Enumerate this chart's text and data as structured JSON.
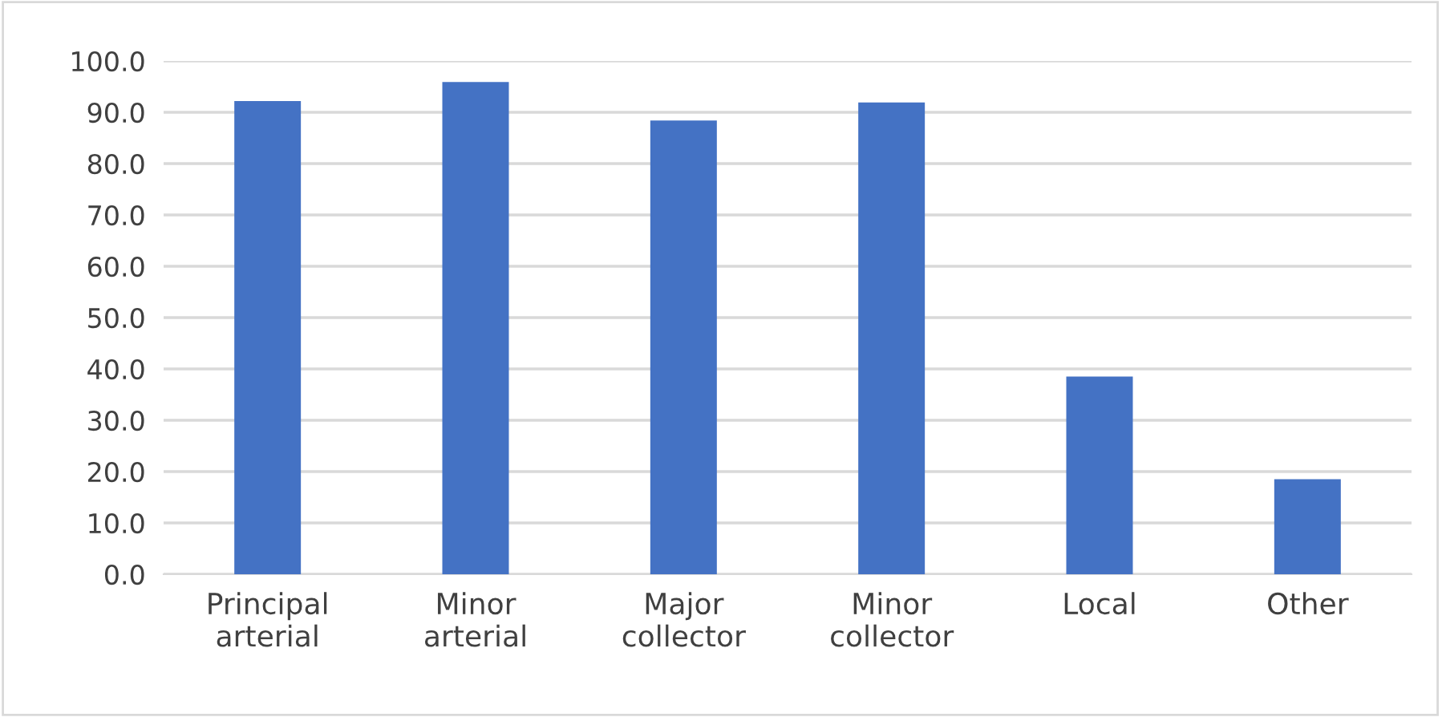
{
  "chart_data": {
    "type": "bar",
    "categories": [
      "Principal\narterial",
      "Minor\narterial",
      "Major\ncollector",
      "Minor\ncollector",
      "Local",
      "Other"
    ],
    "values": [
      92.2,
      95.9,
      88.4,
      91.9,
      38.5,
      18.5
    ],
    "color": "#4472c4",
    "ylim": [
      0,
      100
    ],
    "yticks": [
      {
        "value": 0,
        "label": "0.0"
      },
      {
        "value": 10,
        "label": "10.0"
      },
      {
        "value": 20,
        "label": "20.0"
      },
      {
        "value": 30,
        "label": "30.0"
      },
      {
        "value": 40,
        "label": "40.0"
      },
      {
        "value": 50,
        "label": "50.0"
      },
      {
        "value": 60,
        "label": "60.0"
      },
      {
        "value": 70,
        "label": "70.0"
      },
      {
        "value": 80,
        "label": "80.0"
      },
      {
        "value": 90,
        "label": "90.0"
      },
      {
        "value": 100,
        "label": "100.0"
      }
    ],
    "grid": "y"
  }
}
